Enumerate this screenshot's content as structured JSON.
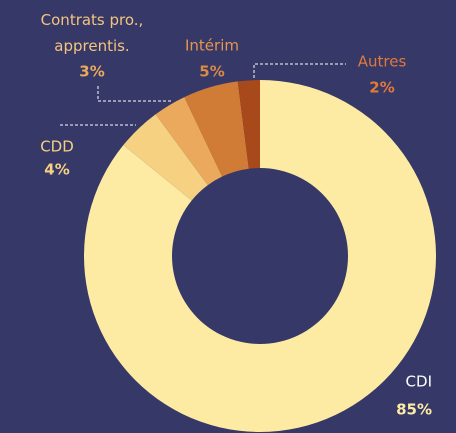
{
  "chart_data": {
    "type": "donut",
    "categories": [
      "CDI",
      "CDD",
      "Contrats pro., apprentis.",
      "Intérim",
      "Autres"
    ],
    "values": [
      85,
      4,
      3,
      5,
      2
    ],
    "value_labels": [
      "85%",
      "4%",
      "3%",
      "5%",
      "2%"
    ],
    "colors": [
      "#fdeba4",
      "#f6d181",
      "#eaa95c",
      "#d07b36",
      "#a8491c"
    ],
    "label_colors": [
      "#ffffff",
      "#f6d181",
      "#f3c47e",
      "#e6964d",
      "#e0793a"
    ],
    "value_label_colors": [
      "#fdeba4",
      "#f6d181",
      "#eaa95c",
      "#d98a44",
      "#e0793a"
    ]
  }
}
